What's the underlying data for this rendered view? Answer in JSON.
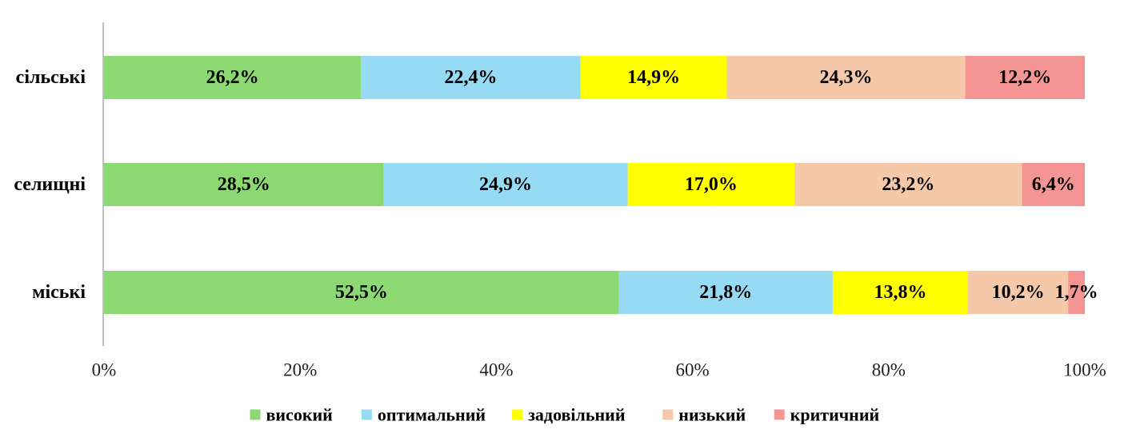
{
  "chart_data": {
    "type": "bar",
    "orientation": "horizontal",
    "stacked": true,
    "normalized": true,
    "categories": [
      "сільські",
      "селищні",
      "міські"
    ],
    "series": [
      {
        "name": "високий",
        "color": "#8cd872",
        "values": [
          26.2,
          28.5,
          52.5
        ],
        "labels": [
          "26,2%",
          "28,5%",
          "52,5%"
        ]
      },
      {
        "name": "оптимальний",
        "color": "#97daf4",
        "values": [
          22.4,
          24.9,
          21.8
        ],
        "labels": [
          "22,4%",
          "24,9%",
          "21,8%"
        ]
      },
      {
        "name": "задовільний",
        "color": "#ffff00",
        "values": [
          14.9,
          17.0,
          13.8
        ],
        "labels": [
          "14,9%",
          "17,0%",
          "13,8%"
        ]
      },
      {
        "name": "низький",
        "color": "#f6c8aa",
        "values": [
          24.3,
          23.2,
          10.2
        ],
        "labels": [
          "24,3%",
          "23,2%",
          "10,2%"
        ]
      },
      {
        "name": "критичний",
        "color": "#f59593",
        "values": [
          12.2,
          6.4,
          1.7
        ],
        "labels": [
          "12,2%",
          "6,4%",
          "1,7%"
        ]
      }
    ],
    "xlim": [
      0,
      100
    ],
    "xticks": [
      0,
      20,
      40,
      60,
      80,
      100
    ],
    "xtick_labels": [
      "0%",
      "20%",
      "40%",
      "60%",
      "80%",
      "100%"
    ],
    "grid": false,
    "legend_position": "bottom"
  }
}
